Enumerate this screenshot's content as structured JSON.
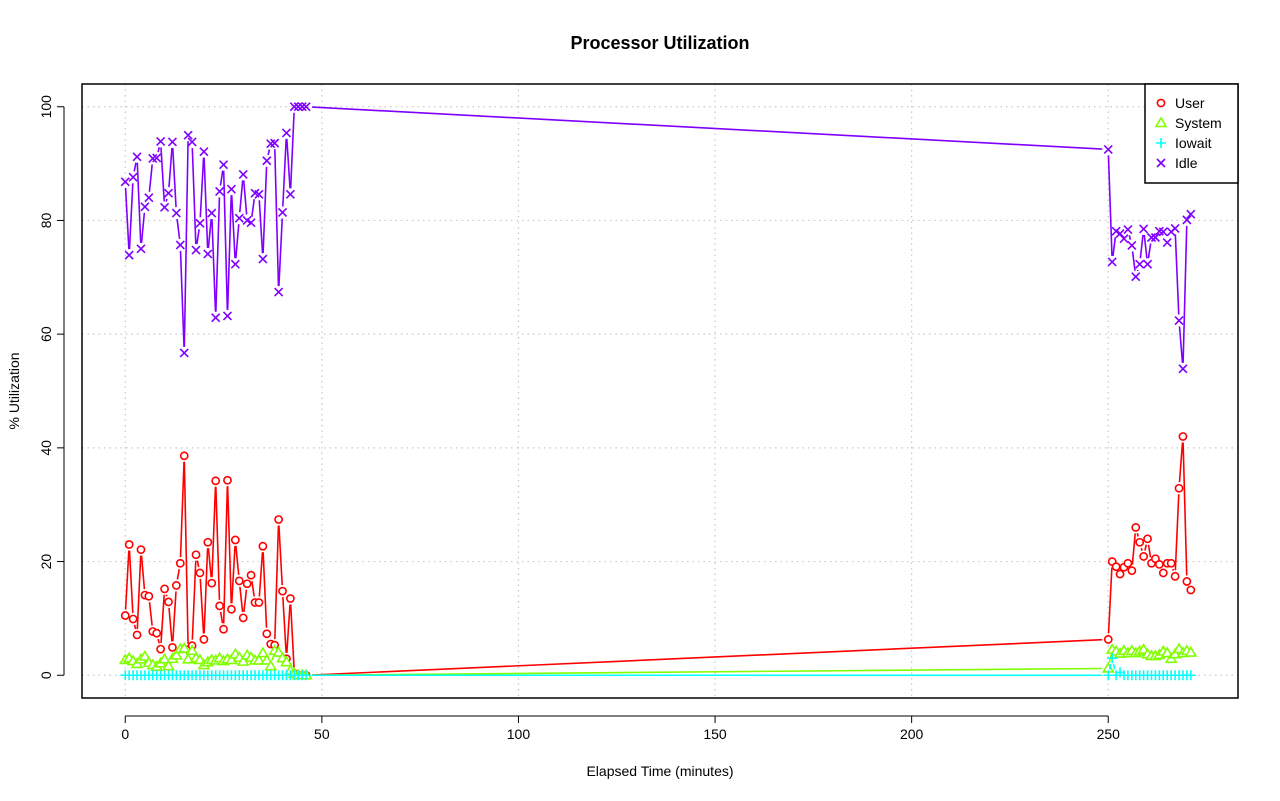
{
  "chart_data": {
    "type": "line",
    "title": "Processor Utilization",
    "xlabel": "Elapsed Time (minutes)",
    "ylabel": "% Utilization",
    "xlim": [
      -11,
      283
    ],
    "ylim": [
      -4,
      104
    ],
    "xticks": [
      0,
      50,
      100,
      150,
      200,
      250
    ],
    "yticks": [
      0,
      20,
      40,
      60,
      80,
      100
    ],
    "grid": true,
    "legend_position": "top-right",
    "series": [
      {
        "name": "User",
        "color": "#ff0000",
        "marker": "circle",
        "x": [
          0,
          1,
          2,
          3,
          4,
          5,
          6,
          7,
          8,
          9,
          10,
          11,
          12,
          13,
          14,
          15,
          16,
          17,
          18,
          19,
          20,
          21,
          22,
          23,
          24,
          25,
          26,
          27,
          28,
          29,
          30,
          31,
          32,
          33,
          34,
          35,
          36,
          37,
          38,
          39,
          40,
          41,
          42,
          43,
          44,
          45,
          46,
          250,
          251,
          252,
          253,
          254,
          255,
          256,
          257,
          258,
          259,
          260,
          261,
          262,
          263,
          264,
          265,
          266,
          267,
          268,
          269,
          270,
          271
        ],
        "values": [
          10.5,
          23.0,
          9.9,
          7.1,
          22.1,
          14.1,
          13.9,
          7.7,
          7.4,
          4.6,
          15.2,
          12.9,
          4.9,
          15.8,
          19.7,
          38.6,
          4.5,
          5.2,
          21.2,
          18.0,
          6.3,
          23.4,
          16.2,
          34.2,
          12.2,
          8.1,
          34.3,
          11.6,
          23.8,
          16.6,
          10.1,
          16.1,
          17.6,
          12.8,
          12.8,
          22.7,
          7.3,
          5.5,
          5.3,
          27.4,
          14.8,
          2.9,
          13.5,
          0.3,
          0.0,
          0.0,
          0.0,
          6.3,
          20.0,
          19.1,
          17.8,
          19.0,
          19.7,
          18.4,
          26.0,
          23.4,
          20.9,
          24.0,
          19.7,
          20.5,
          19.5,
          18.0,
          19.7,
          19.7,
          17.4,
          32.9,
          42.0,
          16.5,
          15.0
        ]
      },
      {
        "name": "System",
        "color": "#80ff00",
        "marker": "triangle",
        "x": [
          0,
          1,
          2,
          3,
          4,
          5,
          6,
          7,
          8,
          9,
          10,
          11,
          12,
          13,
          14,
          15,
          16,
          17,
          18,
          19,
          20,
          21,
          22,
          23,
          24,
          25,
          26,
          27,
          28,
          29,
          30,
          31,
          32,
          33,
          34,
          35,
          36,
          37,
          38,
          39,
          40,
          41,
          42,
          43,
          44,
          45,
          46,
          250,
          251,
          252,
          253,
          254,
          255,
          256,
          257,
          258,
          259,
          260,
          261,
          262,
          263,
          264,
          265,
          266,
          267,
          268,
          269,
          270,
          271
        ],
        "values": [
          2.7,
          3.0,
          2.5,
          2.0,
          2.8,
          3.3,
          2.2,
          1.8,
          1.5,
          2.1,
          2.8,
          1.6,
          2.9,
          3.5,
          4.6,
          4.7,
          2.8,
          4.3,
          3.0,
          2.7,
          1.8,
          2.3,
          2.7,
          2.6,
          3.0,
          2.5,
          2.8,
          2.7,
          3.7,
          3.1,
          2.4,
          3.5,
          3.1,
          2.6,
          2.6,
          3.9,
          2.6,
          1.6,
          4.3,
          4.0,
          3.0,
          2.3,
          0.8,
          0.3,
          0.0,
          0.0,
          0.0,
          1.2,
          4.5,
          4.2,
          3.8,
          4.3,
          3.9,
          4.3,
          3.9,
          4.2,
          4.5,
          3.7,
          3.4,
          3.4,
          3.6,
          4.2,
          3.9,
          2.9,
          3.7,
          4.6,
          3.9,
          4.3,
          4.0
        ]
      },
      {
        "name": "Iowait",
        "color": "#00ffff",
        "marker": "plus",
        "x": [
          0,
          1,
          2,
          3,
          4,
          5,
          6,
          7,
          8,
          9,
          10,
          11,
          12,
          13,
          14,
          15,
          16,
          17,
          18,
          19,
          20,
          21,
          22,
          23,
          24,
          25,
          26,
          27,
          28,
          29,
          30,
          31,
          32,
          33,
          34,
          35,
          36,
          37,
          38,
          39,
          40,
          41,
          42,
          43,
          44,
          45,
          46,
          250,
          251,
          252,
          253,
          254,
          255,
          256,
          257,
          258,
          259,
          260,
          261,
          262,
          263,
          264,
          265,
          266,
          267,
          268,
          269,
          270,
          271
        ],
        "values": [
          0,
          0,
          0,
          0,
          0,
          0,
          0,
          0,
          0,
          0,
          0,
          0,
          0,
          0,
          0,
          0,
          0,
          0,
          0,
          0,
          0,
          0,
          0,
          0,
          0,
          0,
          0,
          0,
          0,
          0,
          0,
          0,
          0,
          0,
          0,
          0,
          0,
          0,
          0,
          0,
          0,
          0,
          0,
          0,
          0,
          0,
          0,
          0,
          3.0,
          0.0,
          0.5,
          0,
          0,
          0,
          0,
          0,
          0,
          0,
          0,
          0,
          0,
          0,
          0,
          0,
          0,
          0,
          0,
          0,
          0
        ]
      },
      {
        "name": "Idle",
        "color": "#8000ff",
        "marker": "cross",
        "x": [
          0,
          1,
          2,
          3,
          4,
          5,
          6,
          7,
          8,
          9,
          10,
          11,
          12,
          13,
          14,
          15,
          16,
          17,
          18,
          19,
          20,
          21,
          22,
          23,
          24,
          25,
          26,
          27,
          28,
          29,
          30,
          31,
          32,
          33,
          34,
          35,
          36,
          37,
          38,
          39,
          40,
          41,
          42,
          43,
          44,
          45,
          46,
          250,
          251,
          252,
          253,
          254,
          255,
          256,
          257,
          258,
          259,
          260,
          261,
          262,
          263,
          264,
          265,
          266,
          267,
          268,
          269,
          270,
          271
        ],
        "values": [
          86.8,
          73.9,
          87.6,
          91.2,
          75.0,
          82.4,
          84.0,
          90.9,
          91.0,
          93.9,
          82.3,
          84.8,
          93.8,
          81.3,
          75.7,
          56.7,
          95.0,
          93.8,
          74.8,
          79.5,
          92.1,
          74.1,
          81.3,
          62.9,
          85.1,
          89.8,
          63.2,
          85.5,
          72.3,
          80.4,
          88.1,
          80.0,
          79.6,
          84.8,
          84.6,
          73.2,
          90.5,
          93.5,
          93.6,
          67.4,
          81.4,
          95.4,
          84.6,
          100.0,
          100.0,
          100.0,
          100.0,
          92.5,
          72.7,
          78.1,
          77.7,
          76.8,
          78.4,
          75.6,
          70.1,
          72.3,
          78.5,
          72.3,
          77.0,
          77.0,
          78.1,
          78.0,
          76.1,
          78.0,
          78.6,
          62.4,
          53.9,
          80.1,
          81.1
        ]
      }
    ]
  }
}
